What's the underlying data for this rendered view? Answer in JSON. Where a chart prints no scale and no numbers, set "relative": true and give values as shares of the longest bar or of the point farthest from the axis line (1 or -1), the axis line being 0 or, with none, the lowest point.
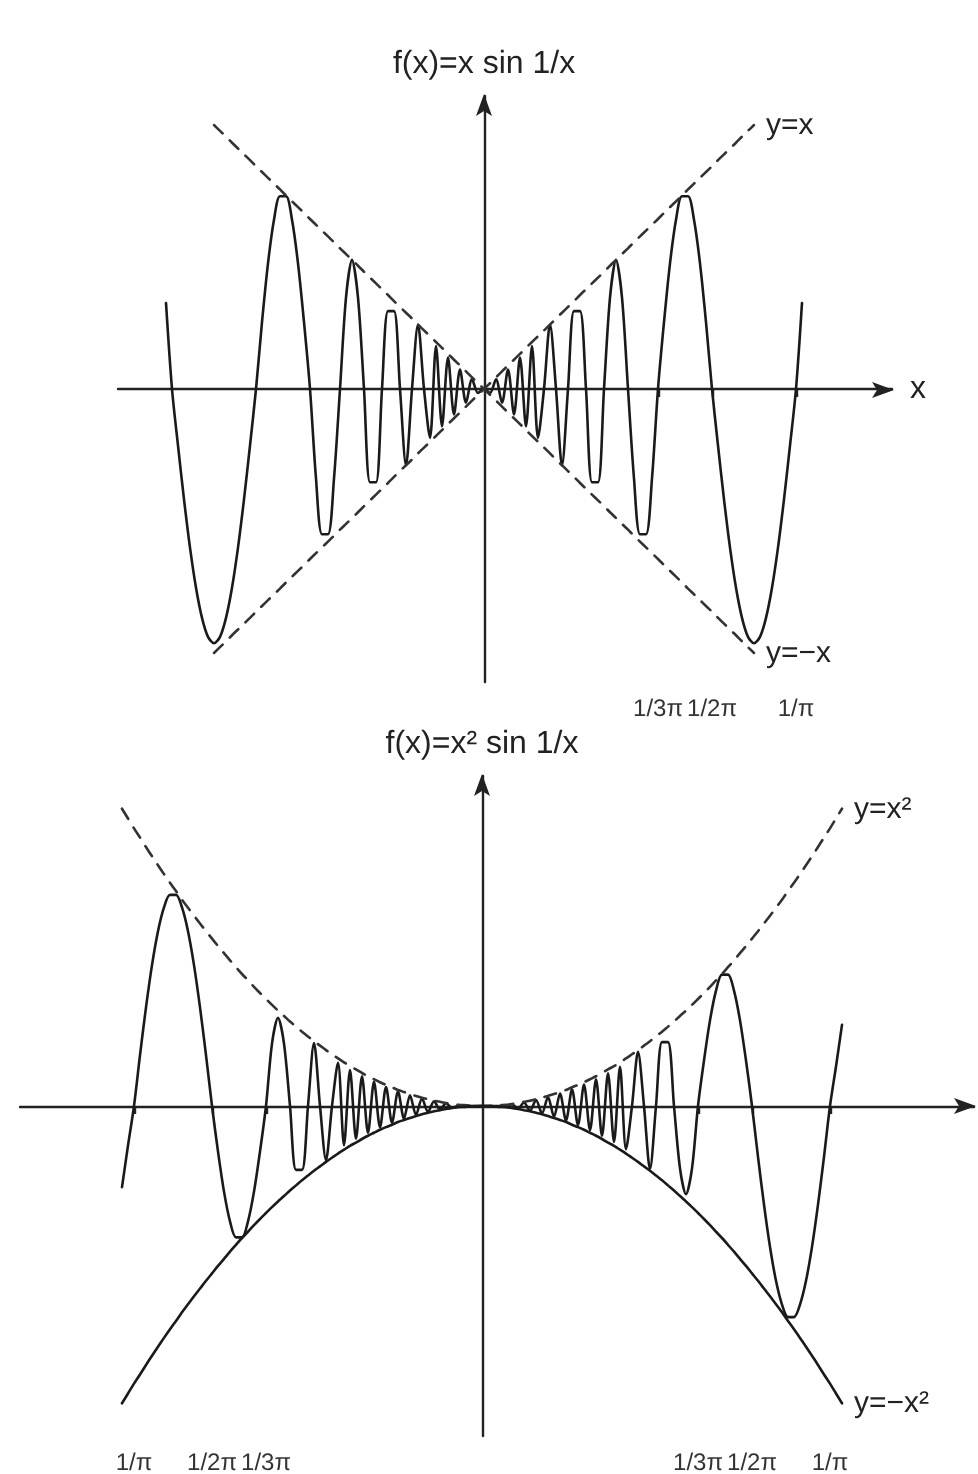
{
  "chart_data": [
    {
      "type": "line",
      "xlabel": "x",
      "ylabel": "f(x)=x sin 1/x",
      "relative": true,
      "grid": false,
      "marker": "none",
      "categories": [
        null,
        null,
        null,
        null,
        null,
        null,
        null,
        null,
        null,
        null,
        null,
        null,
        null,
        null,
        null,
        null,
        null,
        null,
        null,
        null,
        null,
        null,
        null,
        null,
        null,
        null,
        null,
        null,
        null,
        null,
        null,
        null,
        null,
        null,
        null,
        null,
        null,
        null,
        null,
        null,
        null,
        null,
        null,
        null,
        null,
        null,
        null,
        null,
        null,
        null,
        null,
        null,
        null,
        null,
        null,
        null,
        null,
        null,
        null,
        null,
        null,
        null,
        null,
        null,
        null,
        null,
        null,
        null,
        null,
        null,
        null,
        null,
        null,
        null,
        null,
        null,
        null,
        null,
        null,
        null,
        null,
        null,
        null,
        null,
        null,
        null,
        null,
        null,
        null,
        null,
        "1/3π",
        null,
        null,
        null,
        null,
        null,
        null,
        null,
        null,
        "1/2π",
        null,
        null,
        null,
        null,
        null,
        null,
        null,
        null,
        null,
        null,
        null,
        null,
        null,
        "1/π",
        null,
        null,
        null,
        null,
        null,
        null,
        null,
        null,
        null,
        null,
        null,
        null,
        null,
        null,
        null,
        null
      ],
      "series": [
        {
          "color": "#1a1a1a",
          "line_style": "solid",
          "values": [
            null,
            null,
            null,
            null,
            null,
            null,
            null,
            null,
            0.326,
            0,
            -0.214,
            -0.418,
            -0.601,
            -0.753,
            -0.867,
            -0.939,
            -0.963,
            -0.939,
            -0.867,
            -0.753,
            -0.601,
            -0.418,
            -0.214,
            0,
            0.253,
            0.476,
            0.641,
            0.73,
            0.73,
            0.641,
            0.476,
            0.253,
            0,
            -0.339,
            -0.55,
            -0.55,
            -0.339,
            0,
            0.346,
            0.489,
            0.346,
            0,
            -0.353,
            -0.353,
            0,
            0.295,
            0.295,
            0,
            -0.289,
            0,
            0.244,
            0,
            -0.185,
            0.163,
            -0.141,
            0.119,
            -0.096,
            0.074,
            -0.052,
            0.037,
            -0.015,
            0,
            -0.015,
            0.037,
            -0.052,
            0.074,
            -0.096,
            0.119,
            -0.141,
            0.163,
            -0.185,
            0,
            0.244,
            0,
            -0.289,
            0,
            0.295,
            0.295,
            0,
            -0.353,
            -0.353,
            0,
            0.346,
            0.489,
            0.346,
            0,
            -0.339,
            -0.55,
            -0.55,
            -0.339,
            0,
            0.253,
            0.476,
            0.641,
            0.73,
            0.73,
            0.641,
            0.476,
            0.253,
            0,
            -0.214,
            -0.418,
            -0.601,
            -0.753,
            -0.867,
            -0.939,
            -0.963,
            -0.939,
            -0.867,
            -0.753,
            -0.601,
            -0.418,
            -0.214,
            0,
            0.326,
            null,
            null,
            null,
            null,
            null,
            null,
            null,
            null,
            null,
            null,
            null,
            null,
            null,
            null,
            null
          ]
        },
        {
          "name": "y=x",
          "color": "#333333",
          "line_style": "dashed",
          "values": [
            null,
            null,
            null,
            null,
            null,
            null,
            null,
            null,
            null,
            null,
            null,
            null,
            null,
            null,
            null,
            null,
            -1,
            -0.978,
            -0.956,
            -0.933,
            -0.911,
            -0.889,
            -0.867,
            -0.844,
            -0.822,
            -0.8,
            -0.778,
            -0.756,
            -0.733,
            -0.711,
            -0.689,
            -0.667,
            -0.644,
            -0.622,
            -0.6,
            -0.578,
            -0.556,
            -0.533,
            -0.511,
            -0.489,
            -0.467,
            -0.444,
            -0.422,
            -0.4,
            -0.378,
            -0.356,
            -0.333,
            -0.311,
            -0.289,
            -0.267,
            -0.244,
            -0.222,
            -0.2,
            -0.178,
            -0.156,
            -0.133,
            -0.111,
            -0.089,
            -0.067,
            -0.044,
            -0.022,
            0,
            0.022,
            0.044,
            0.067,
            0.089,
            0.111,
            0.133,
            0.156,
            0.178,
            0.2,
            0.222,
            0.244,
            0.267,
            0.289,
            0.311,
            0.333,
            0.356,
            0.378,
            0.4,
            0.422,
            0.444,
            0.467,
            0.489,
            0.511,
            0.533,
            0.556,
            0.578,
            0.6,
            0.622,
            0.644,
            0.667,
            0.689,
            0.711,
            0.733,
            0.756,
            0.778,
            0.8,
            0.822,
            0.844,
            0.867,
            0.889,
            0.911,
            0.933,
            0.956,
            0.978,
            1,
            null,
            null,
            null,
            null,
            null,
            null,
            null,
            null,
            null,
            null,
            null,
            null,
            null,
            null,
            null,
            null,
            null,
            null,
            null,
            null,
            null,
            null,
            null
          ]
        },
        {
          "name": "y=−x",
          "color": "#333333",
          "line_style": "dashed",
          "values": [
            null,
            null,
            null,
            null,
            null,
            null,
            null,
            null,
            null,
            null,
            null,
            null,
            null,
            null,
            null,
            null,
            1,
            0.978,
            0.956,
            0.933,
            0.911,
            0.889,
            0.867,
            0.844,
            0.822,
            0.8,
            0.778,
            0.756,
            0.733,
            0.711,
            0.689,
            0.667,
            0.644,
            0.622,
            0.6,
            0.578,
            0.556,
            0.533,
            0.511,
            0.489,
            0.467,
            0.444,
            0.422,
            0.4,
            0.378,
            0.356,
            0.333,
            0.311,
            0.289,
            0.267,
            0.244,
            0.222,
            0.2,
            0.178,
            0.156,
            0.133,
            0.111,
            0.089,
            0.067,
            0.044,
            0.022,
            0,
            -0.022,
            -0.044,
            -0.067,
            -0.089,
            -0.111,
            -0.133,
            -0.156,
            -0.178,
            -0.2,
            -0.222,
            -0.244,
            -0.267,
            -0.289,
            -0.311,
            -0.333,
            -0.356,
            -0.378,
            -0.4,
            -0.422,
            -0.444,
            -0.467,
            -0.489,
            -0.511,
            -0.533,
            -0.556,
            -0.578,
            -0.6,
            -0.622,
            -0.644,
            -0.667,
            -0.689,
            -0.711,
            -0.733,
            -0.756,
            -0.778,
            -0.8,
            -0.822,
            -0.844,
            -0.867,
            -0.889,
            -0.911,
            -0.933,
            -0.956,
            -0.978,
            -1,
            null,
            null,
            null,
            null,
            null,
            null,
            null,
            null,
            null,
            null,
            null,
            null,
            null,
            null,
            null,
            null,
            null,
            null,
            null,
            null,
            null,
            null,
            null
          ]
        }
      ]
    },
    {
      "type": "line",
      "ylabel": "f(x)=x² sin 1/x",
      "relative": true,
      "grid": false,
      "marker": "none",
      "categories": [
        null,
        null,
        null,
        null,
        null,
        null,
        null,
        null,
        null,
        null,
        null,
        null,
        null,
        null,
        null,
        null,
        null,
        null,
        null,
        "1/π",
        null,
        null,
        null,
        null,
        null,
        null,
        null,
        null,
        null,
        null,
        null,
        null,
        "1/2π",
        null,
        null,
        null,
        null,
        null,
        null,
        null,
        null,
        "1/3π",
        null,
        null,
        null,
        null,
        null,
        null,
        null,
        null,
        null,
        null,
        null,
        null,
        null,
        null,
        null,
        null,
        null,
        null,
        null,
        null,
        null,
        null,
        null,
        null,
        null,
        null,
        null,
        null,
        null,
        null,
        null,
        null,
        null,
        null,
        null,
        null,
        null,
        null,
        null,
        null,
        null,
        null,
        null,
        null,
        null,
        null,
        null,
        null,
        null,
        null,
        null,
        null,
        null,
        null,
        null,
        null,
        null,
        null,
        null,
        null,
        null,
        null,
        null,
        null,
        null,
        null,
        null,
        null,
        null,
        null,
        null,
        "1/3π",
        null,
        null,
        null,
        null,
        null,
        null,
        null,
        null,
        "1/2π",
        null,
        null,
        null,
        null,
        null,
        null,
        null,
        null,
        null,
        null,
        null,
        null,
        "1/π",
        null,
        null,
        null,
        null,
        null,
        null,
        null,
        null,
        null,
        null,
        null,
        null,
        null,
        null,
        null,
        null,
        null,
        null,
        null,
        null,
        null,
        null,
        null,
        null
      ],
      "series": [
        {
          "color": "#1a1a1a",
          "line_style": "solid",
          "values": [
            null,
            null,
            null,
            null,
            null,
            null,
            null,
            null,
            null,
            null,
            null,
            null,
            null,
            null,
            null,
            null,
            null,
            -0.273,
            -0.133,
            0,
            0.171,
            0.332,
            0.474,
            0.588,
            0.668,
            0.71,
            0.71,
            0.668,
            0.588,
            0.474,
            0.332,
            0.171,
            0,
            -0.153,
            -0.288,
            -0.388,
            -0.442,
            -0.442,
            -0.388,
            -0.288,
            -0.153,
            0,
            0.21,
            0.297,
            0.21,
            0,
            -0.215,
            -0.215,
            0,
            0.212,
            0,
            -0.182,
            0,
            0.145,
            -0.132,
            0.121,
            -0.11,
            0.1,
            -0.09,
            0.081,
            -0.072,
            0.064,
            -0.056,
            0.049,
            -0.042,
            0.036,
            -0.03,
            0.025,
            -0.02,
            0.016,
            -0.012,
            0.009,
            -0.006,
            0,
            0,
            0,
            0,
            0,
            0,
            0,
            0,
            0,
            0.006,
            -0.009,
            0.012,
            -0.016,
            0.02,
            -0.025,
            0.03,
            -0.036,
            0.042,
            -0.049,
            0.056,
            -0.064,
            0.072,
            -0.081,
            0.09,
            -0.1,
            0.11,
            -0.121,
            0.132,
            -0.145,
            0,
            0.182,
            0,
            -0.212,
            0,
            0.215,
            0.215,
            0,
            -0.21,
            -0.297,
            -0.21,
            0,
            0.153,
            0.288,
            0.388,
            0.442,
            0.442,
            0.388,
            0.288,
            0.153,
            0,
            -0.171,
            -0.332,
            -0.474,
            -0.588,
            -0.668,
            -0.71,
            -0.71,
            -0.668,
            -0.588,
            -0.474,
            -0.332,
            -0.171,
            0,
            0.133,
            0.273,
            null,
            null,
            null,
            null,
            null,
            null,
            null,
            null,
            null,
            null,
            null,
            null,
            null,
            null,
            null,
            null,
            null,
            null,
            null,
            null,
            null,
            null
          ]
        },
        {
          "name": "y=x²",
          "color": "#333333",
          "line_style": "dashed",
          "values": [
            null,
            null,
            null,
            null,
            null,
            null,
            null,
            null,
            null,
            null,
            null,
            null,
            null,
            null,
            null,
            null,
            null,
            1,
            0.967,
            0.934,
            0.903,
            0.871,
            0.84,
            0.81,
            0.78,
            0.751,
            0.723,
            0.694,
            0.667,
            0.64,
            0.614,
            0.588,
            0.563,
            0.538,
            0.514,
            0.49,
            0.467,
            0.444,
            0.423,
            0.401,
            0.38,
            0.36,
            0.34,
            0.321,
            0.303,
            0.284,
            0.267,
            0.25,
            0.234,
            0.218,
            0.203,
            0.188,
            0.174,
            0.16,
            0.147,
            0.134,
            0.123,
            0.111,
            0.1,
            0.09,
            0.08,
            0.071,
            0.063,
            0.054,
            0.047,
            0.04,
            0.034,
            0.028,
            0.023,
            0.018,
            0.014,
            0.01,
            0.007,
            0.004,
            0.003,
            0.001,
            0,
            0,
            0,
            0.001,
            0.003,
            0.004,
            0.007,
            0.01,
            0.014,
            0.018,
            0.023,
            0.028,
            0.034,
            0.04,
            0.047,
            0.054,
            0.063,
            0.071,
            0.08,
            0.09,
            0.1,
            0.111,
            0.123,
            0.134,
            0.147,
            0.16,
            0.174,
            0.188,
            0.203,
            0.218,
            0.234,
            0.25,
            0.267,
            0.284,
            0.303,
            0.321,
            0.34,
            0.36,
            0.38,
            0.401,
            0.423,
            0.444,
            0.467,
            0.49,
            0.514,
            0.538,
            0.563,
            0.588,
            0.614,
            0.64,
            0.667,
            0.694,
            0.723,
            0.751,
            0.78,
            0.81,
            0.84,
            0.871,
            0.903,
            0.934,
            0.967,
            1,
            null,
            null,
            null,
            null,
            null,
            null,
            null,
            null,
            null,
            null,
            null,
            null,
            null,
            null,
            null,
            null,
            null,
            null,
            null,
            null,
            null,
            null
          ]
        },
        {
          "name": "y=−x²",
          "color": "#1a1a1a",
          "line_style": "solid",
          "values": [
            null,
            null,
            null,
            null,
            null,
            null,
            null,
            null,
            null,
            null,
            null,
            null,
            null,
            null,
            null,
            null,
            null,
            -1,
            -0.967,
            -0.934,
            -0.903,
            -0.871,
            -0.84,
            -0.81,
            -0.78,
            -0.751,
            -0.723,
            -0.694,
            -0.667,
            -0.64,
            -0.614,
            -0.588,
            -0.563,
            -0.538,
            -0.514,
            -0.49,
            -0.467,
            -0.444,
            -0.423,
            -0.401,
            -0.38,
            -0.36,
            -0.34,
            -0.321,
            -0.303,
            -0.284,
            -0.267,
            -0.25,
            -0.234,
            -0.218,
            -0.203,
            -0.188,
            -0.174,
            -0.16,
            -0.147,
            -0.134,
            -0.123,
            -0.111,
            -0.1,
            -0.09,
            -0.08,
            -0.071,
            -0.063,
            -0.054,
            -0.047,
            -0.04,
            -0.034,
            -0.028,
            -0.023,
            -0.018,
            -0.014,
            -0.01,
            -0.007,
            -0.004,
            -0.003,
            -0.001,
            0,
            0,
            0,
            -0.001,
            -0.003,
            -0.004,
            -0.007,
            -0.01,
            -0.014,
            -0.018,
            -0.023,
            -0.028,
            -0.034,
            -0.04,
            -0.047,
            -0.054,
            -0.063,
            -0.071,
            -0.08,
            -0.09,
            -0.1,
            -0.111,
            -0.123,
            -0.134,
            -0.147,
            -0.16,
            -0.174,
            -0.188,
            -0.203,
            -0.218,
            -0.234,
            -0.25,
            -0.267,
            -0.284,
            -0.303,
            -0.321,
            -0.34,
            -0.36,
            -0.38,
            -0.401,
            -0.423,
            -0.444,
            -0.467,
            -0.49,
            -0.514,
            -0.538,
            -0.563,
            -0.588,
            -0.614,
            -0.64,
            -0.667,
            -0.694,
            -0.723,
            -0.751,
            -0.78,
            -0.81,
            -0.84,
            -0.871,
            -0.903,
            -0.934,
            -0.967,
            -1,
            null,
            null,
            null,
            null,
            null,
            null,
            null,
            null,
            null,
            null,
            null,
            null,
            null,
            null,
            null,
            null,
            null,
            null,
            null,
            null,
            null,
            null
          ]
        }
      ]
    }
  ]
}
